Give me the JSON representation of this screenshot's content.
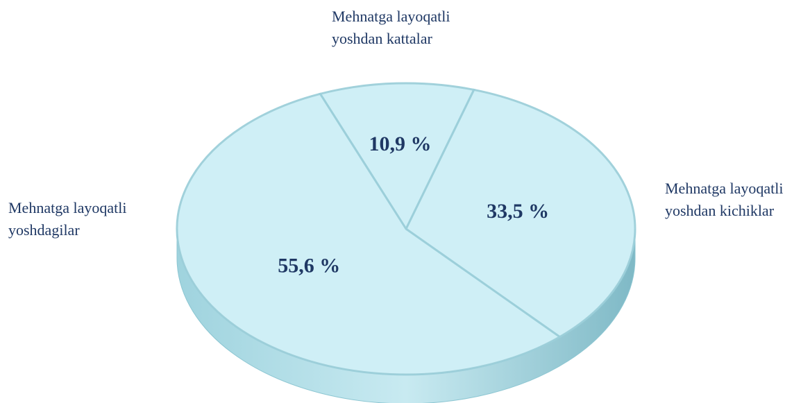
{
  "chart_data": {
    "type": "pie",
    "categories": [
      "Mehnatga layoqatli yoshdan kattalar",
      "Mehnatga layoqatli yoshdan kichiklar",
      "Mehnatga layoqatli yoshdagilar"
    ],
    "values": [
      10.9,
      33.5,
      55.6
    ],
    "value_labels": [
      "10,9 %",
      "33,5 %",
      "55,6 %"
    ],
    "color": "#cdeff6"
  }
}
